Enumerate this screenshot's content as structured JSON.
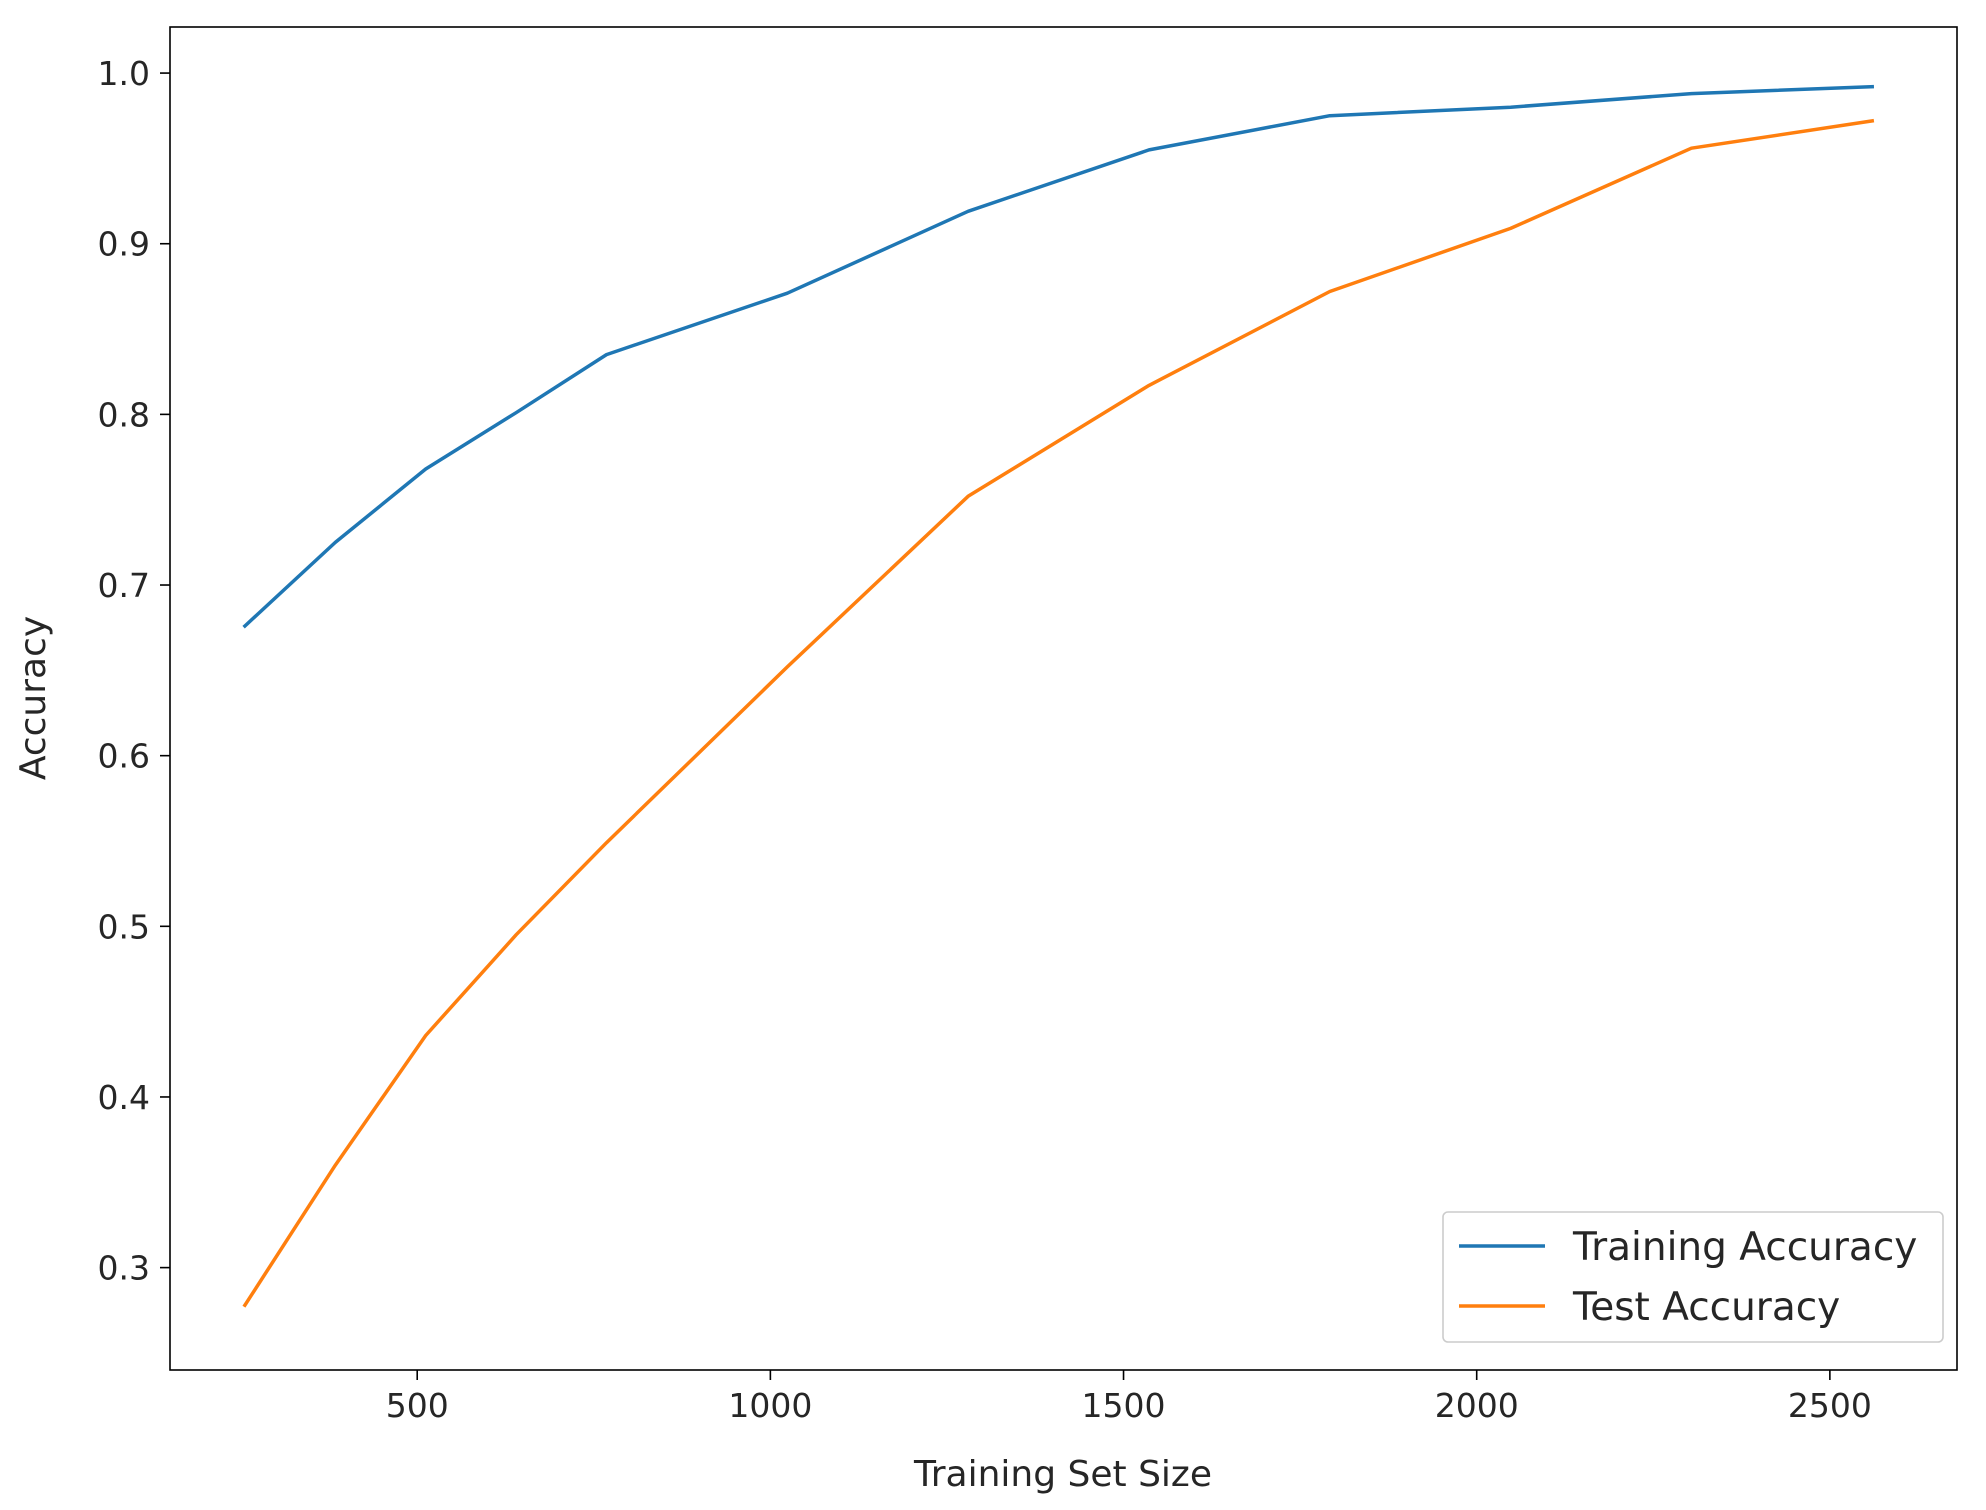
{
  "chart_data": {
    "type": "line",
    "title": "",
    "xlabel": "Training Set Size",
    "ylabel": "Accuracy",
    "xlim": [
      150,
      2680
    ],
    "ylim": [
      0.24,
      1.027
    ],
    "x_ticks": [
      500,
      1000,
      1500,
      2000,
      2500
    ],
    "x_tick_labels": [
      "500",
      "1000",
      "1500",
      "2000",
      "2500"
    ],
    "y_ticks": [
      0.3,
      0.4,
      0.5,
      0.6,
      0.7,
      0.8,
      0.9,
      1.0
    ],
    "y_tick_labels": [
      "0.3",
      "0.4",
      "0.5",
      "0.6",
      "0.7",
      "0.8",
      "0.9",
      "1.0"
    ],
    "grid": false,
    "legend_position": "lower-right",
    "x": [
      256,
      384,
      512,
      640,
      768,
      1024,
      1280,
      1536,
      1792,
      2048,
      2304,
      2560
    ],
    "series": [
      {
        "name": "Training Accuracy",
        "color": "#1f77b4",
        "values": [
          0.676,
          0.725,
          0.768,
          0.801,
          0.835,
          0.871,
          0.919,
          0.955,
          0.975,
          0.98,
          0.988,
          0.992
        ]
      },
      {
        "name": "Test Accuracy",
        "color": "#ff7f0e",
        "values": [
          0.278,
          0.36,
          0.436,
          0.495,
          0.549,
          0.652,
          0.752,
          0.817,
          0.872,
          0.909,
          0.956,
          0.972
        ]
      }
    ]
  }
}
